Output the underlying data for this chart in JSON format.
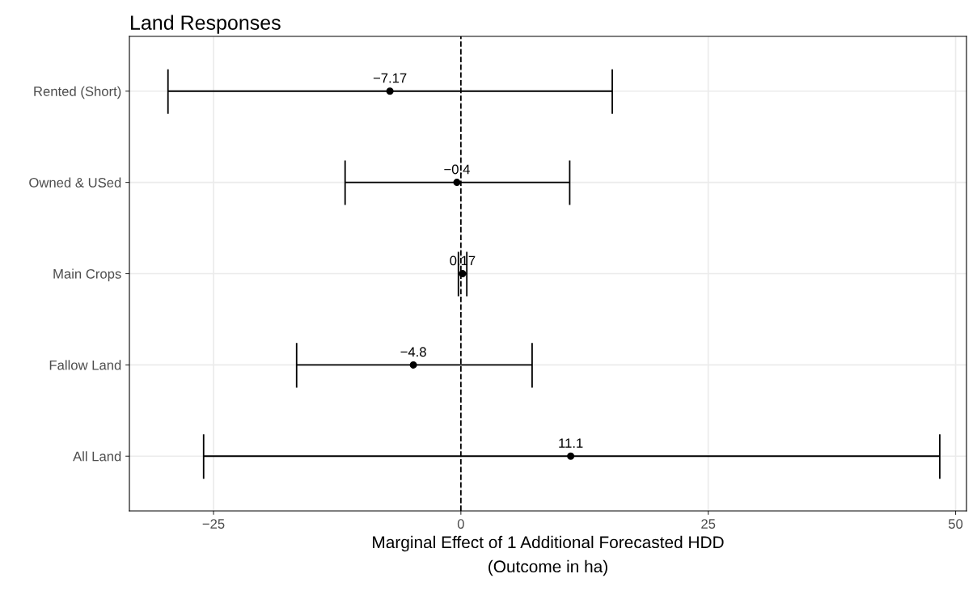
{
  "chart_data": {
    "type": "scatter",
    "orientation": "horizontal",
    "title": "Land Responses",
    "xlabel": "Marginal Effect of 1 Additional Forecasted HDD\n(Outcome in ha)",
    "categories": [
      "Rented (Short)",
      "Owned & USed",
      "Main Crops",
      "Fallow Land",
      "All Land"
    ],
    "values": [
      -7.17,
      -0.4,
      0.17,
      -4.8,
      11.1
    ],
    "errors": [
      [
        -29.6,
        15.3
      ],
      [
        -11.7,
        11.0
      ],
      [
        -0.25,
        0.6
      ],
      [
        -16.6,
        7.2
      ],
      [
        -26.0,
        48.4
      ]
    ],
    "color": "#000000",
    "marker": "circle",
    "data_labels": true,
    "xlim": [
      -33.5,
      51.1
    ],
    "xticks": [
      {
        "value": -25,
        "label": "−25"
      },
      0,
      25,
      50
    ],
    "ref_lines": [
      {
        "axis": "x",
        "value": 0,
        "line_style": "dashed",
        "color": "#000000"
      }
    ],
    "grid": true
  }
}
